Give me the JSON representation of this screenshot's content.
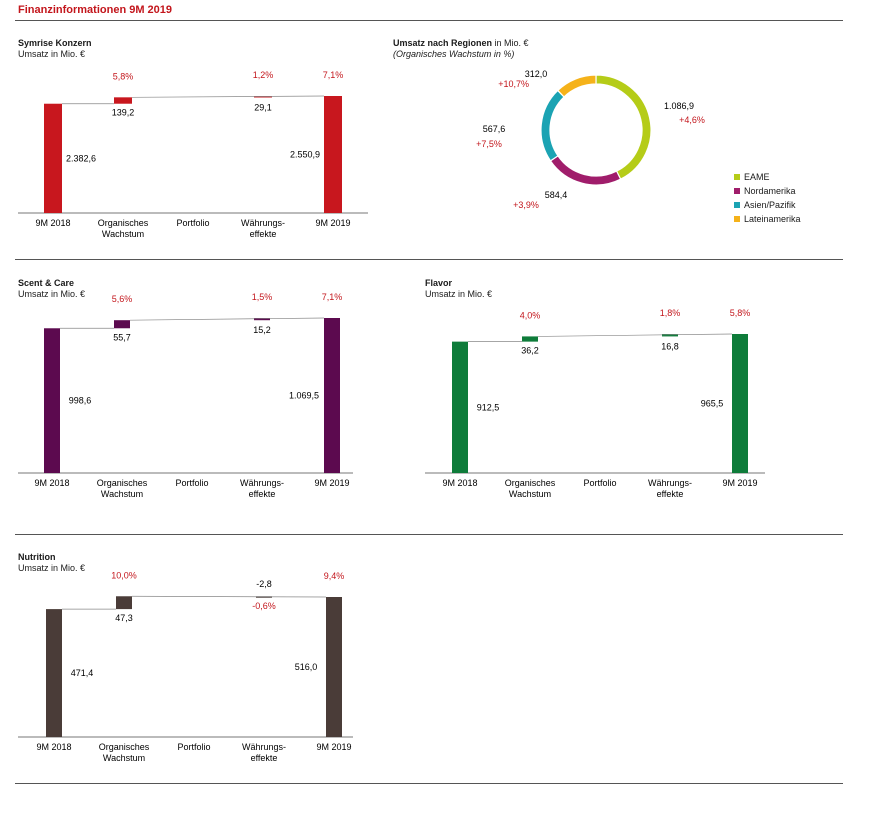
{
  "header": {
    "title": "Finanzinformationen 9M 2019"
  },
  "colors": {
    "konzern": "#c8171e",
    "scent": "#5c0a4f",
    "flavor": "#0e7c3a",
    "nutrition": "#4a3c38",
    "growth_text": "#c3161c",
    "eame": "#b5cc18",
    "nordamerika": "#a01d6b",
    "asien": "#1ba3b3",
    "lateinamerika": "#f5b21a"
  },
  "chart_data": [
    {
      "id": "konzern",
      "type": "bar",
      "subtype": "waterfall",
      "title": "Symrise Konzern",
      "unit_label": "Umsatz in Mio. €",
      "categories": [
        "9M 2018",
        "Organisches|Wachstum",
        "Portfolio",
        "Währungs-|effekte",
        "9M 2019"
      ],
      "values": [
        2382.6,
        139.2,
        0,
        29.1,
        2550.9
      ],
      "value_labels": [
        "2.382,6",
        "139,2",
        "",
        "29,1",
        "2.550,9"
      ],
      "growth_labels": [
        "",
        "5,8%",
        "",
        "1,2%",
        "7,1%"
      ]
    },
    {
      "id": "scent",
      "type": "bar",
      "subtype": "waterfall",
      "title": "Scent & Care",
      "unit_label": "Umsatz in Mio. €",
      "categories": [
        "9M 2018",
        "Organisches|Wachstum",
        "Portfolio",
        "Währungs-|effekte",
        "9M 2019"
      ],
      "values": [
        998.6,
        55.7,
        0,
        15.2,
        1069.5
      ],
      "value_labels": [
        "998,6",
        "55,7",
        "",
        "15,2",
        "1.069,5"
      ],
      "growth_labels": [
        "",
        "5,6%",
        "",
        "1,5%",
        "7,1%"
      ]
    },
    {
      "id": "flavor",
      "type": "bar",
      "subtype": "waterfall",
      "title": "Flavor",
      "unit_label": "Umsatz in Mio. €",
      "categories": [
        "9M 2018",
        "Organisches|Wachstum",
        "Portfolio",
        "Währungs-|effekte",
        "9M 2019"
      ],
      "values": [
        912.5,
        36.2,
        0,
        16.8,
        965.5
      ],
      "value_labels": [
        "912,5",
        "36,2",
        "",
        "16,8",
        "965,5"
      ],
      "growth_labels": [
        "",
        "4,0%",
        "",
        "1,8%",
        "5,8%"
      ]
    },
    {
      "id": "nutrition",
      "type": "bar",
      "subtype": "waterfall",
      "title": "Nutrition",
      "unit_label": "Umsatz in Mio. €",
      "categories": [
        "9M 2018",
        "Organisches|Wachstum",
        "Portfolio",
        "Währungs-|effekte",
        "9M 2019"
      ],
      "values": [
        471.4,
        47.3,
        0,
        -2.8,
        516.0
      ],
      "value_labels": [
        "471,4",
        "47,3",
        "",
        "-2,8",
        "516,0"
      ],
      "growth_labels": [
        "",
        "10,0%",
        "",
        "-0,6%",
        "9,4%"
      ]
    },
    {
      "id": "regionen",
      "type": "pie",
      "subtype": "donut",
      "title": "Umsatz nach Regionen",
      "title_suffix": "in Mio. €",
      "subtitle": "(Organisches Wachstum in %)",
      "slices": [
        {
          "name": "EAME",
          "value": 1086.9,
          "label": "1.086,9",
          "growth": "+4,6%"
        },
        {
          "name": "Nordamerika",
          "value": 584.4,
          "label": "584,4",
          "growth": "+3,9%"
        },
        {
          "name": "Asien/Pazifik",
          "value": 567.6,
          "label": "567,6",
          "growth": "+7,5%"
        },
        {
          "name": "Lateinamerika",
          "value": 312.0,
          "label": "312,0",
          "growth": "+10,7%"
        }
      ],
      "legend": [
        "EAME",
        "Nordamerika",
        "Asien/Pazifik",
        "Lateinamerika"
      ]
    }
  ]
}
